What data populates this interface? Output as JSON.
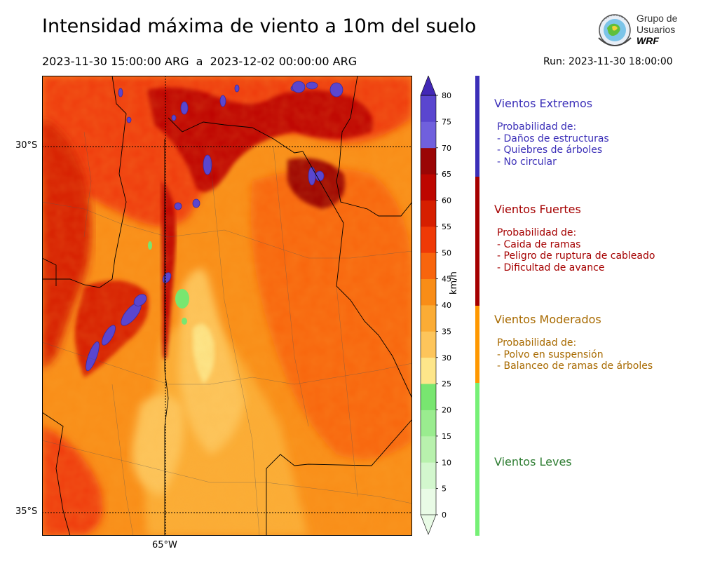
{
  "header": {
    "title": "Intensidad máxima de viento a 10m del suelo",
    "period": "2023-11-30 15:00:00 ARG  a  2023-12-02 00:00:00 ARG",
    "run": "Run: 2023-11-30 18:00:00"
  },
  "logo": {
    "line1": "Grupo de",
    "line2": "Usuarios",
    "line3": "WRF"
  },
  "map": {
    "lat_labels": [
      "30°S",
      "35°S"
    ],
    "lon_labels": [
      "65°W"
    ]
  },
  "colorbar": {
    "unit": "km/h",
    "levels": [
      0,
      5,
      10,
      15,
      20,
      25,
      30,
      35,
      40,
      45,
      50,
      55,
      60,
      65,
      70,
      75,
      80
    ],
    "colors": [
      "#e9fbe6",
      "#d3f7ce",
      "#b8f1ad",
      "#9aec8f",
      "#78e670",
      "#fde68a",
      "#fdc55b",
      "#fbac35",
      "#f98d17",
      "#f8650d",
      "#ef3a07",
      "#d61f00",
      "#bd0600",
      "#9a0505",
      "#7060dd",
      "#5a46cf",
      "#4228b6"
    ],
    "ticks": [
      "0",
      "5",
      "10",
      "15",
      "20",
      "25",
      "30",
      "35",
      "40",
      "45",
      "50",
      "55",
      "60",
      "65",
      "70",
      "75",
      "80"
    ]
  },
  "categories": [
    {
      "title": "Vientos Extremos",
      "color": "#3b2fb8",
      "prob": "Probabilidad de:",
      "items": [
        "- Daños de estructuras",
        "- Quiebres de árboles",
        "- No circular"
      ]
    },
    {
      "title": "Vientos Fuertes",
      "color": "#a50000",
      "prob": "Probabilidad de:",
      "items": [
        "- Caida de ramas",
        "- Peligro de ruptura de cableado",
        "- Dificultad de avance"
      ]
    },
    {
      "title": "Vientos Moderados",
      "color": "#a86a00",
      "prob": "Probabilidad de:",
      "items": [
        "- Polvo en suspensión",
        "- Balanceo de ramas de árboles"
      ]
    },
    {
      "title": "Vientos Leves",
      "color": "#2e7d32",
      "prob": "",
      "items": []
    }
  ],
  "category_bar_colors": [
    "#3b2fb8",
    "#a50000",
    "#ff9800",
    "#76f076"
  ]
}
